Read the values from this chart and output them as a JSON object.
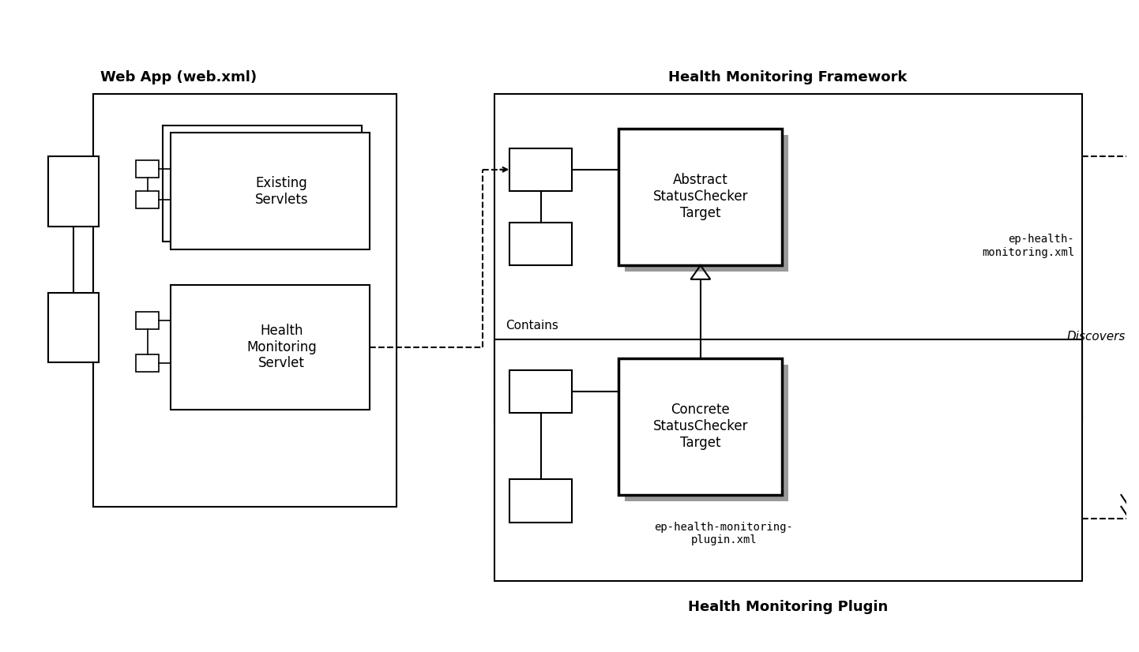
{
  "bg_color": "#ffffff",
  "webapp_label": "Web App (web.xml)",
  "framework_label": "Health Monitoring Framework",
  "plugin_label": "Health Monitoring Plugin",
  "existing_servlets_text": "Existing\nServlets",
  "health_monitoring_servlet_text": "Health\nMonitoring\nServlet",
  "abstract_target_text": "Abstract\nStatusChecker\nTarget",
  "concrete_target_text": "Concrete\nStatusChecker\nTarget",
  "contains_label": "Contains",
  "discovers_label": "Discovers",
  "ep_framework_label": "ep-health-\nmonitoring.xml",
  "ep_plugin_label": "ep-health-monitoring-\nplugin.xml"
}
